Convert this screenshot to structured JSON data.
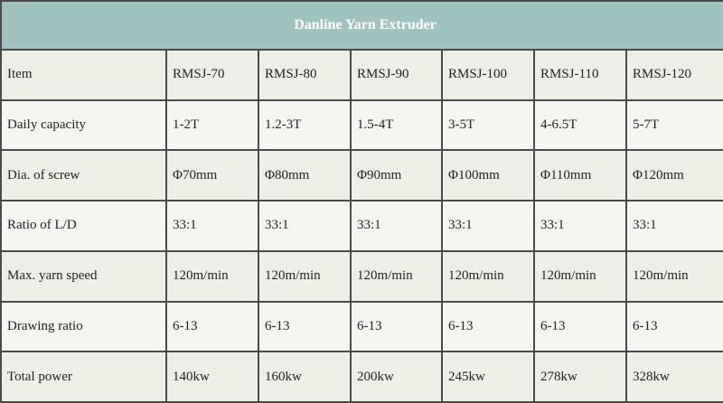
{
  "header": {
    "title": "Danline Yarn Extruder"
  },
  "table": {
    "rows": [
      [
        "Item",
        "RMSJ-70",
        "RMSJ-80",
        "RMSJ-90",
        "RMSJ-100",
        "RMSJ-110",
        "RMSJ-120"
      ],
      [
        "Daily capacity",
        "1-2T",
        "1.2-3T",
        "1.5-4T",
        "3-5T",
        "4-6.5T",
        "5-7T"
      ],
      [
        "Dia. of screw",
        "Φ70mm",
        "Φ80mm",
        "Φ90mm",
        "Φ100mm",
        "Φ110mm",
        "Φ120mm"
      ],
      [
        "Ratio of L/D",
        "33:1",
        "33:1",
        "33:1",
        "33:1",
        "33:1",
        "33:1"
      ],
      [
        "Max. yarn speed",
        "120m/min",
        "120m/min",
        "120m/min",
        "120m/min",
        "120m/min",
        "120m/min"
      ],
      [
        "Drawing ratio",
        "6-13",
        "6-13",
        "6-13",
        "6-13",
        "6-13",
        "6-13"
      ],
      [
        "Total power",
        "140kw",
        "160kw",
        "200kw",
        "245kw",
        "278kw",
        "328kw"
      ]
    ]
  }
}
